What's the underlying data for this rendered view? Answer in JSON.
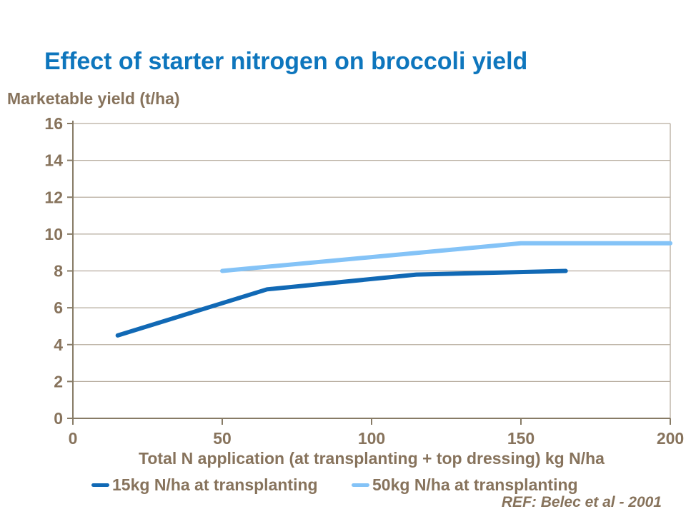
{
  "ref_note": "REF: Belec et al - 2001",
  "colors": {
    "title_blue": "#0E76BD",
    "text_brown": "#87735C",
    "axis": "#877B66",
    "grid": "#B6AC9E",
    "series_dark_blue": "#1169B5",
    "series_light_blue": "#84C3F7",
    "background": "#FFFFFF"
  },
  "chart_data": {
    "type": "line",
    "title": "Effect of starter nitrogen on broccoli yield",
    "xlabel": "Total N application (at transplanting + top dressing) kg N/ha",
    "ylabel": "Marketable yield (t/ha)",
    "xlim": [
      0,
      200
    ],
    "ylim": [
      0,
      16
    ],
    "x_ticks": [
      0,
      50,
      100,
      150,
      200
    ],
    "y_ticks": [
      0,
      2,
      4,
      6,
      8,
      10,
      12,
      14,
      16
    ],
    "grid": "horizontal-only",
    "legend_position": "bottom",
    "series": [
      {
        "name": "15kg N/ha at transplanting",
        "color": "#1169B5",
        "x": [
          15,
          65,
          115,
          165
        ],
        "y": [
          4.5,
          7,
          7.8,
          8
        ]
      },
      {
        "name": "50kg N/ha at transplanting",
        "color": "#84C3F7",
        "x": [
          50,
          100,
          150,
          200
        ],
        "y": [
          8,
          8.75,
          9.5,
          9.5
        ]
      }
    ]
  }
}
